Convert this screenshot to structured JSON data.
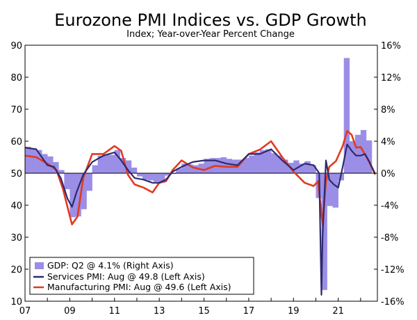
{
  "chart_data": {
    "type": "bar+line",
    "title": "Eurozone PMI Indices vs. GDP Growth",
    "subtitle": "Index; Year-over-Year Percent Change",
    "left_axis": {
      "ylim": [
        10,
        90
      ],
      "ticks": [
        "10",
        "20",
        "30",
        "40",
        "50",
        "60",
        "70",
        "80",
        "90"
      ]
    },
    "right_axis": {
      "ylim": [
        -16,
        16
      ],
      "ticks": [
        "-16%",
        "-12%",
        "-8%",
        "-4%",
        "0%",
        "4%",
        "8%",
        "12%",
        "16%"
      ]
    },
    "x_axis": {
      "range": [
        2007.0,
        2022.75
      ],
      "ticks": [
        "07",
        "09",
        "11",
        "13",
        "15",
        "17",
        "19",
        "21"
      ]
    },
    "legend": {
      "placement": "bottom-left",
      "entries": [
        "GDP: Q2 @ 4.1% (Right Axis)",
        "Services PMI: Aug @ 49.8 (Left Axis)",
        "Manufacturing PMI: Aug @ 49.6 (Left Axis)"
      ]
    },
    "colors": {
      "gdp": "#9b8ee6",
      "services": "#2d2a6e",
      "manufacturing": "#e03a1e"
    },
    "gdp_series": {
      "name": "GDP",
      "x": [
        2007.0,
        2007.25,
        2007.5,
        2007.75,
        2008.0,
        2008.25,
        2008.5,
        2008.75,
        2009.0,
        2009.25,
        2009.5,
        2009.75,
        2010.0,
        2010.25,
        2010.5,
        2010.75,
        2011.0,
        2011.25,
        2011.5,
        2011.75,
        2012.0,
        2012.25,
        2012.5,
        2012.75,
        2013.0,
        2013.25,
        2013.5,
        2013.75,
        2014.0,
        2014.25,
        2014.5,
        2014.75,
        2015.0,
        2015.25,
        2015.5,
        2015.75,
        2016.0,
        2016.25,
        2016.5,
        2016.75,
        2017.0,
        2017.25,
        2017.5,
        2017.75,
        2018.0,
        2018.25,
        2018.5,
        2018.75,
        2019.0,
        2019.25,
        2019.5,
        2019.75,
        2020.0,
        2020.25,
        2020.5,
        2020.75,
        2021.0,
        2021.25,
        2021.5,
        2021.75,
        2022.0,
        2022.25
      ],
      "values": [
        3.3,
        3.1,
        2.9,
        2.4,
        2.1,
        1.4,
        0.4,
        -2.0,
        -5.5,
        -5.4,
        -4.5,
        -2.2,
        1.0,
        2.2,
        2.3,
        2.3,
        2.9,
        1.9,
        1.6,
        0.7,
        -0.4,
        -0.8,
        -0.9,
        -1.1,
        -1.1,
        -0.3,
        -0.1,
        0.6,
        1.2,
        1.1,
        1.0,
        1.2,
        1.8,
        1.9,
        1.9,
        2.0,
        1.8,
        1.7,
        1.7,
        1.9,
        2.2,
        2.6,
        2.9,
        3.0,
        2.5,
        2.2,
        1.7,
        1.3,
        1.6,
        1.2,
        1.5,
        1.0,
        -3.1,
        -14.6,
        -4.1,
        -4.3,
        -0.9,
        14.4,
        4.0,
        4.8,
        5.4,
        4.1
      ]
    },
    "services_series": {
      "name": "Services PMI",
      "x": [
        2007.0,
        2007.5,
        2008.0,
        2008.3,
        2008.6,
        2008.9,
        2009.1,
        2009.3,
        2009.6,
        2010.0,
        2010.5,
        2011.0,
        2011.3,
        2011.6,
        2011.9,
        2012.3,
        2012.7,
        2013.0,
        2013.3,
        2013.6,
        2014.0,
        2014.5,
        2015.0,
        2015.5,
        2016.0,
        2016.5,
        2017.0,
        2017.5,
        2018.0,
        2018.5,
        2019.0,
        2019.5,
        2019.9,
        2020.15,
        2020.25,
        2020.3,
        2020.45,
        2020.6,
        2020.8,
        2021.0,
        2021.2,
        2021.4,
        2021.6,
        2021.8,
        2022.0,
        2022.2,
        2022.4,
        2022.65
      ],
      "values": [
        58.0,
        57.5,
        52.5,
        52.0,
        48.5,
        42.0,
        39.5,
        44.0,
        49.5,
        53.5,
        55.5,
        56.5,
        54.0,
        51.0,
        48.5,
        48.0,
        47.0,
        47.0,
        48.0,
        50.5,
        52.0,
        53.5,
        54.0,
        54.0,
        53.0,
        52.5,
        56.0,
        56.0,
        57.5,
        54.0,
        51.0,
        53.0,
        52.5,
        50.0,
        12.0,
        30.0,
        54.0,
        48.0,
        46.5,
        45.5,
        52.0,
        59.0,
        57.0,
        55.5,
        55.5,
        56.0,
        53.5,
        49.8
      ]
    },
    "manufacturing_series": {
      "name": "Manufacturing PMI",
      "x": [
        2007.0,
        2007.5,
        2008.0,
        2008.4,
        2008.7,
        2008.95,
        2009.1,
        2009.35,
        2009.6,
        2010.0,
        2010.5,
        2011.0,
        2011.3,
        2011.6,
        2011.9,
        2012.3,
        2012.7,
        2013.0,
        2013.3,
        2013.6,
        2014.0,
        2014.5,
        2015.0,
        2015.5,
        2016.0,
        2016.5,
        2017.0,
        2017.5,
        2018.0,
        2018.5,
        2019.0,
        2019.5,
        2019.9,
        2020.1,
        2020.3,
        2020.45,
        2020.6,
        2020.9,
        2021.2,
        2021.4,
        2021.6,
        2021.8,
        2022.0,
        2022.3,
        2022.65
      ],
      "values": [
        55.5,
        55.0,
        53.0,
        51.0,
        45.0,
        38.0,
        34.0,
        36.5,
        48.5,
        56.0,
        56.0,
        58.5,
        57.0,
        49.5,
        46.5,
        45.5,
        44.0,
        47.0,
        47.5,
        51.0,
        54.0,
        51.8,
        51.0,
        52.3,
        52.0,
        52.0,
        56.0,
        57.4,
        60.0,
        55.0,
        50.5,
        47.0,
        46.0,
        47.5,
        34.0,
        47.4,
        52.0,
        53.8,
        58.5,
        63.2,
        62.0,
        58.0,
        58.2,
        54.6,
        49.6
      ]
    }
  }
}
